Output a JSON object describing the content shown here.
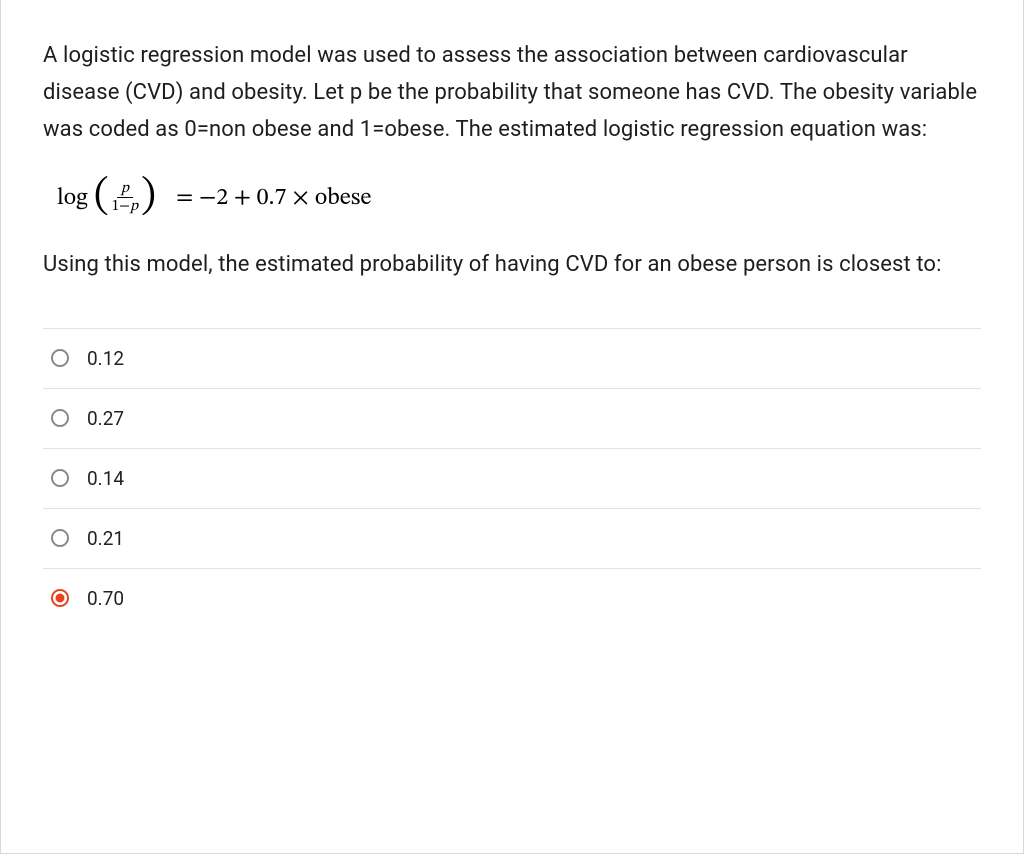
{
  "question": {
    "intro": "A logistic regression model was used to assess the association between cardiovascular disease (CVD) and obesity. Let p be the probability that someone has CVD. The obesity variable was coded as 0=non obese and 1=obese. The estimated logistic regression equation was:",
    "equation": {
      "log_label": "log",
      "frac_numerator": "p",
      "frac_denominator_prefix": "1−",
      "frac_denominator_var": "p",
      "rhs": " =  −2 + 0.7 × obese"
    },
    "prompt": "Using this model, the estimated probability of having CVD for an obese person is closest to:"
  },
  "options": [
    {
      "label": "0.12",
      "selected": false
    },
    {
      "label": "0.27",
      "selected": false
    },
    {
      "label": "0.14",
      "selected": false
    },
    {
      "label": "0.21",
      "selected": false
    },
    {
      "label": "0.70",
      "selected": true
    }
  ],
  "colors": {
    "border": "#d8d8d8",
    "divider": "#e2e2e2",
    "text": "#1e1e1e",
    "radio_unselected": "#8a8a8a",
    "radio_selected": "#e8431f",
    "background": "#ffffff"
  }
}
